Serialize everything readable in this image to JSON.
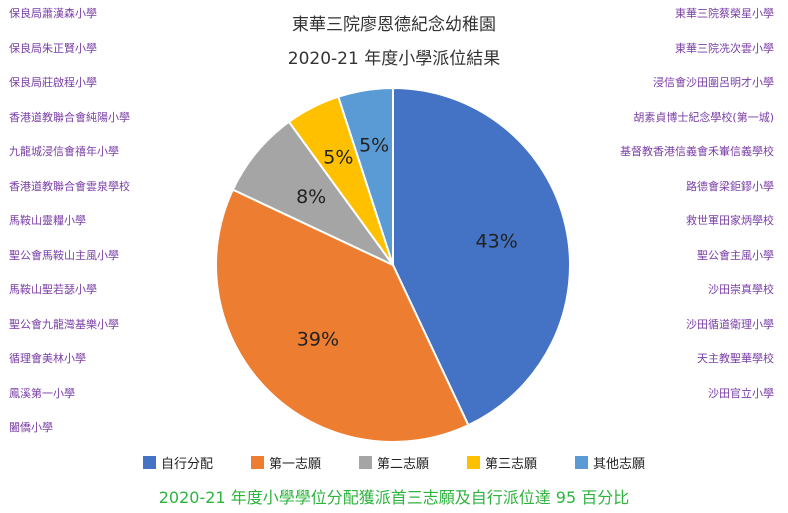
{
  "titles": {
    "line1": "東華三院廖恩德紀念幼稚園",
    "line2": "2020-21 年度小學派位結果"
  },
  "left_schools": [
    "保良局蕭漢森小學",
    "保良局朱正賢小學",
    "保良局莊啟程小學",
    "香港道教聯合會純陽小學",
    "九龍城浸信會禧年小學",
    "香港道教聯合會雲泉學校",
    "馬鞍山靈糧小學",
    "聖公會馬鞍山主風小學",
    "馬鞍山聖若瑟小學",
    "聖公會九龍灣基樂小學",
    "循理會美林小學",
    "鳳溪第一小學",
    "闔僑小學"
  ],
  "right_schools": [
    "東華三院蔡榮星小學",
    "東華三院冼次雲小學",
    "浸信會沙田圍呂明才小學",
    "胡素貞博士紀念學校(第一城)",
    "基督教香港信義會禾輋信義學校",
    "路德會梁鉅鏐小學",
    "救世軍田家炳學校",
    "聖公會主風小學",
    "沙田崇真學校",
    "沙田循道衛理小學",
    "天主教聖華學校",
    "沙田官立小學"
  ],
  "chart_data": {
    "type": "pie",
    "title": "東華三院廖恩德紀念幼稚園 2020-21 年度小學派位結果",
    "slices": [
      {
        "label": "自行分配",
        "value": 43,
        "display": "43%",
        "color": "#4472c4"
      },
      {
        "label": "第一志願",
        "value": 39,
        "display": "39%",
        "color": "#ed7d31"
      },
      {
        "label": "第二志願",
        "value": 8,
        "display": "8%",
        "color": "#a5a5a5"
      },
      {
        "label": "第三志願",
        "value": 5,
        "display": "5%",
        "color": "#ffc000"
      },
      {
        "label": "其他志願",
        "value": 5,
        "display": "5%",
        "color": "#5b9bd5"
      }
    ],
    "start_angle_deg": 0,
    "direction": "clockwise",
    "legend_position": "bottom"
  },
  "footer": "2020-21 年度小學學位分配獲派首三志願及自行派位達 95 百分比"
}
